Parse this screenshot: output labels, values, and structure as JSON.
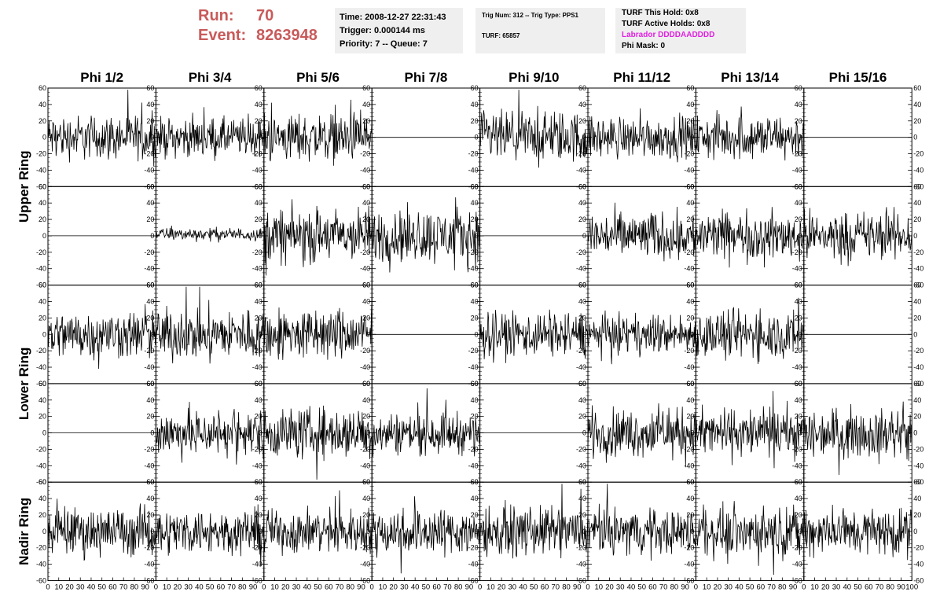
{
  "header": {
    "run_label": "Run:",
    "run_value": "70",
    "event_label": "Event:",
    "event_value": "8263948"
  },
  "trigger_info": {
    "time": "Time: 2008-12-27 22:31:43",
    "trigger": "Trigger: 0.000144 ms",
    "priority": "Priority: 7 -- Queue: 7"
  },
  "trig_info": {
    "trig_num": "Trig Num: 312 -- Trig Type: PPS1",
    "turf": "TURF: 65857"
  },
  "turf_info": {
    "this_hold": "TURF This Hold: 0x8",
    "active_holds": "TURF Active Holds: 0x8",
    "labrador": "Labrador DDDDAADDDD",
    "phi_mask": "Phi Mask: 0"
  },
  "colors": {
    "run_text": "#c85a5a",
    "labrador": "#e020e0",
    "panel_bg": "#efefef",
    "trace": "#000000"
  },
  "chart_data": {
    "type": "line",
    "columns": [
      "Phi 1/2",
      "Phi 3/4",
      "Phi 5/6",
      "Phi 7/8",
      "Phi 9/10",
      "Phi 11/12",
      "Phi 13/14",
      "Phi 15/16"
    ],
    "rings": [
      "Upper Ring",
      "Lower Ring",
      "Nadir Ring"
    ],
    "x_range": [
      0,
      100
    ],
    "y_range": [
      -60,
      60
    ],
    "x_ticks": [
      "0",
      "10",
      "20",
      "30",
      "40",
      "50",
      "60",
      "70",
      "80",
      "90",
      "100"
    ],
    "y_ticks": [
      "60",
      "40",
      "20",
      "0",
      "-20",
      "-40",
      "-60"
    ],
    "panel_rows": 5,
    "waveform_amplitude": [
      [
        14,
        12,
        15,
        0,
        16,
        13,
        14,
        0
      ],
      [
        0,
        4,
        17,
        17,
        0,
        15,
        15,
        15
      ],
      [
        15,
        16,
        16,
        0,
        14,
        12,
        15,
        0
      ],
      [
        0,
        15,
        16,
        13,
        0,
        15,
        15,
        15
      ],
      [
        15,
        14,
        14,
        15,
        15,
        14,
        15,
        15
      ]
    ],
    "waveform_offset": [
      [
        0,
        0,
        0,
        0,
        0,
        0,
        0,
        0
      ],
      [
        0,
        2,
        0,
        0,
        0,
        0,
        0,
        0
      ],
      [
        0,
        0,
        0,
        0,
        0,
        0,
        0,
        0
      ],
      [
        0,
        0,
        0,
        0,
        0,
        0,
        0,
        0
      ],
      [
        0,
        0,
        0,
        0,
        0,
        0,
        0,
        0
      ]
    ]
  }
}
